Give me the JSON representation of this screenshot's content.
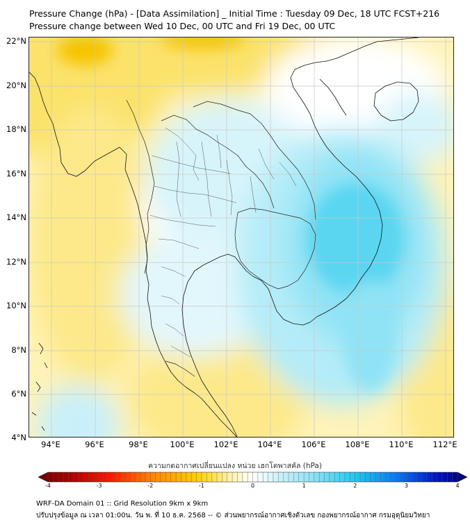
{
  "header": {
    "title_line1": "Pressure Change (hPa) - [Data Assimilation] _ Initial Time : Tuesday 09 Dec, 18 UTC FCST+216",
    "title_line2": "Pressure change between Wed 10 Dec, 00 UTC and Fri 19 Dec, 00 UTC"
  },
  "map": {
    "lat_labels": [
      "22°N",
      "20°N",
      "18°N",
      "16°N",
      "14°N",
      "12°N",
      "10°N",
      "8°N",
      "6°N",
      "4°N"
    ],
    "lon_labels": [
      "94°E",
      "96°E",
      "98°E",
      "100°E",
      "102°E",
      "104°E",
      "106°E",
      "108°E",
      "110°E",
      "112°E"
    ],
    "field_colors": {
      "strong_rise": "#f5c400",
      "rise": "#fbe26a",
      "weak_rise": "#fff3b8",
      "neutral": "#ffffff",
      "weak_fall": "#d7f4fb",
      "fall": "#8fe3f5",
      "strong_fall": "#38cdef"
    }
  },
  "colorbar": {
    "title": "ความกดอากาศเปลี่ยนแปลง หน่วย เฮกโตพาสคัล (hPa)",
    "ticks": [
      "-4",
      "-3",
      "-2",
      "-1",
      "0",
      "1",
      "2",
      "3",
      "4"
    ],
    "min": -4,
    "max": 4
  },
  "footer": {
    "line1": "WRF-DA Domain 01 :: Grid Resolution 9km x 9km",
    "line2": "ปรับปรุงข้อมูล ณ เวลา 01:00น. วัน พ. ที่ 10 ธ.ค. 2568 -- © ส่วนพยากรณ์อากาศเชิงตัวเลข กองพยากรณ์อากาศ กรมอุตุนิยมวิทยา"
  }
}
